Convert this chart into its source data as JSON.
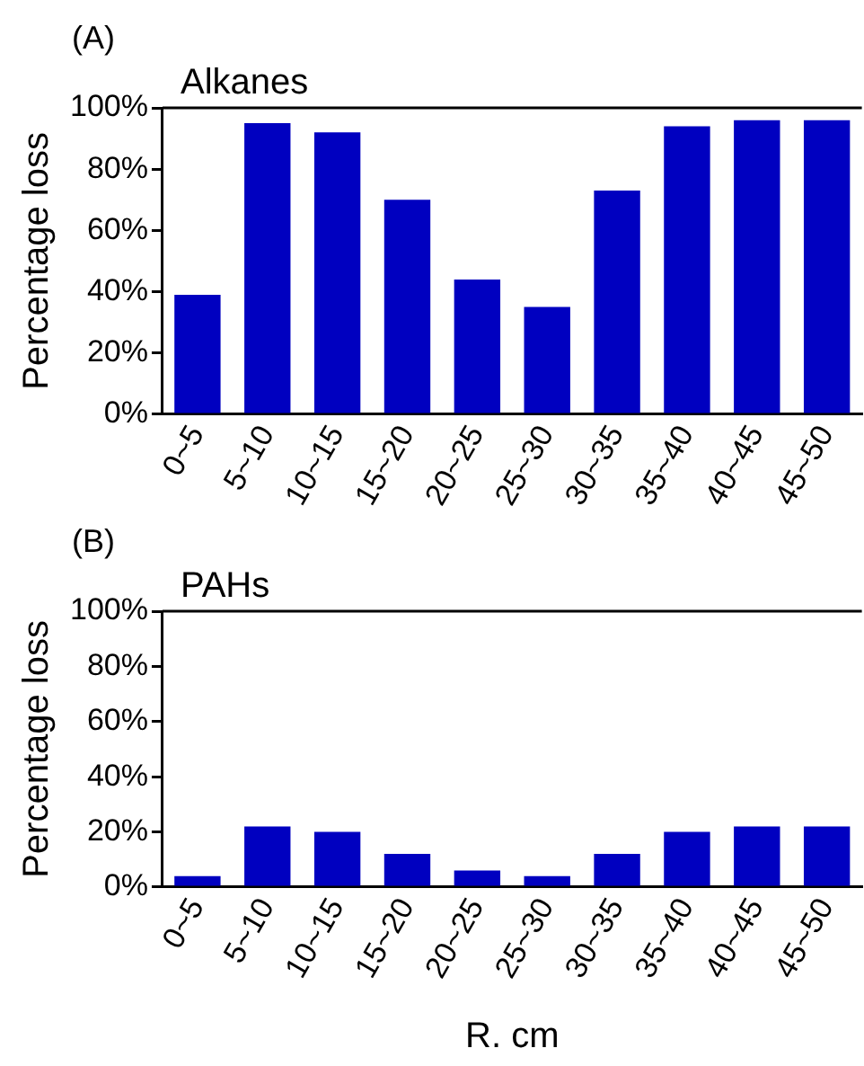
{
  "chart_data": [
    {
      "type": "bar",
      "title": "Alkanes",
      "annotations": [
        "(A)"
      ],
      "ylabel": "Percentage loss",
      "categories": [
        "0~5",
        "5~10",
        "10~15",
        "15~20",
        "20~25",
        "25~30",
        "30~35",
        "35~40",
        "40~45",
        "45~50"
      ],
      "values": [
        39,
        95,
        92,
        70,
        44,
        35,
        73,
        94,
        96,
        96
      ],
      "color": "#0000c0",
      "ylim": [
        0,
        100
      ],
      "yticks": [
        {
          "value": 0,
          "label": "0%"
        },
        {
          "value": 20,
          "label": "20%"
        },
        {
          "value": 40,
          "label": "40%"
        },
        {
          "value": 60,
          "label": "60%"
        },
        {
          "value": 80,
          "label": "80%"
        },
        {
          "value": 100,
          "label": "100%"
        }
      ],
      "grid": false,
      "legend": false
    },
    {
      "type": "bar",
      "title": "PAHs",
      "annotations": [
        "(B)"
      ],
      "ylabel": "Percentage loss",
      "xlabel": "R. cm",
      "categories": [
        "0~5",
        "5~10",
        "10~15",
        "15~20",
        "20~25",
        "25~30",
        "30~35",
        "35~40",
        "40~45",
        "45~50"
      ],
      "values": [
        4,
        22,
        20,
        12,
        6,
        4,
        12,
        20,
        22,
        22
      ],
      "color": "#0000c0",
      "ylim": [
        0,
        100
      ],
      "yticks": [
        {
          "value": 0,
          "label": "0%"
        },
        {
          "value": 20,
          "label": "20%"
        },
        {
          "value": 40,
          "label": "40%"
        },
        {
          "value": 60,
          "label": "60%"
        },
        {
          "value": 80,
          "label": "80%"
        },
        {
          "value": 100,
          "label": "100%"
        }
      ],
      "grid": false,
      "legend": false
    }
  ]
}
